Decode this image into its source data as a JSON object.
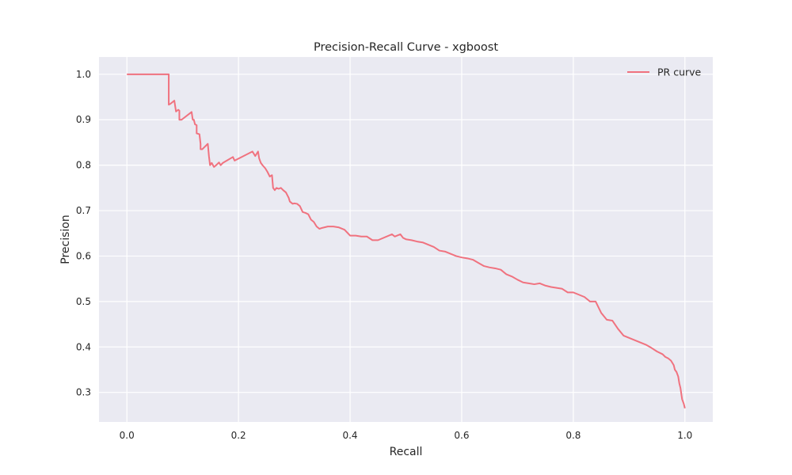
{
  "chart_data": {
    "type": "line",
    "title": "Precision-Recall Curve - xgboost",
    "xlabel": "Recall",
    "ylabel": "Precision",
    "xlim": [
      -0.05,
      1.05
    ],
    "ylim": [
      0.235,
      1.038
    ],
    "xticks": [
      "0.0",
      "0.2",
      "0.4",
      "0.6",
      "0.8",
      "1.0"
    ],
    "yticks": [
      "0.3",
      "0.4",
      "0.5",
      "0.6",
      "0.7",
      "0.8",
      "0.9",
      "1.0"
    ],
    "grid": true,
    "legend_position": "top-right",
    "series": [
      {
        "name": "PR curve",
        "color": "#f0727f",
        "x": [
          0.0,
          0.075,
          0.075,
          0.078,
          0.085,
          0.088,
          0.09,
          0.092,
          0.094,
          0.094,
          0.098,
          0.116,
          0.118,
          0.12,
          0.122,
          0.125,
          0.125,
          0.13,
          0.132,
          0.132,
          0.135,
          0.145,
          0.147,
          0.149,
          0.152,
          0.156,
          0.16,
          0.165,
          0.168,
          0.172,
          0.19,
          0.193,
          0.225,
          0.23,
          0.235,
          0.237,
          0.24,
          0.243,
          0.248,
          0.252,
          0.256,
          0.26,
          0.262,
          0.265,
          0.268,
          0.272,
          0.276,
          0.28,
          0.285,
          0.29,
          0.292,
          0.294,
          0.297,
          0.3,
          0.305,
          0.31,
          0.315,
          0.32,
          0.325,
          0.33,
          0.335,
          0.34,
          0.345,
          0.35,
          0.36,
          0.37,
          0.38,
          0.39,
          0.4,
          0.41,
          0.42,
          0.43,
          0.44,
          0.45,
          0.475,
          0.48,
          0.49,
          0.495,
          0.5,
          0.51,
          0.52,
          0.53,
          0.54,
          0.55,
          0.56,
          0.57,
          0.58,
          0.59,
          0.6,
          0.61,
          0.62,
          0.63,
          0.64,
          0.65,
          0.66,
          0.67,
          0.68,
          0.69,
          0.7,
          0.71,
          0.72,
          0.73,
          0.74,
          0.75,
          0.76,
          0.77,
          0.78,
          0.79,
          0.8,
          0.81,
          0.82,
          0.83,
          0.84,
          0.85,
          0.86,
          0.87,
          0.88,
          0.89,
          0.9,
          0.91,
          0.92,
          0.93,
          0.94,
          0.95,
          0.96,
          0.965,
          0.97,
          0.975,
          0.98,
          0.982,
          0.985,
          0.988,
          0.99,
          0.992,
          0.995,
          0.998,
          1.0
        ],
        "y": [
          1.0,
          1.0,
          0.933,
          0.935,
          0.942,
          0.918,
          0.92,
          0.922,
          0.92,
          0.9,
          0.9,
          0.917,
          0.9,
          0.9,
          0.89,
          0.888,
          0.87,
          0.868,
          0.847,
          0.835,
          0.835,
          0.847,
          0.82,
          0.8,
          0.805,
          0.796,
          0.8,
          0.806,
          0.8,
          0.805,
          0.818,
          0.81,
          0.83,
          0.82,
          0.83,
          0.815,
          0.805,
          0.8,
          0.793,
          0.785,
          0.775,
          0.778,
          0.75,
          0.745,
          0.75,
          0.748,
          0.75,
          0.745,
          0.74,
          0.728,
          0.72,
          0.718,
          0.715,
          0.716,
          0.715,
          0.71,
          0.697,
          0.695,
          0.692,
          0.68,
          0.675,
          0.665,
          0.66,
          0.662,
          0.665,
          0.665,
          0.663,
          0.658,
          0.645,
          0.645,
          0.643,
          0.643,
          0.635,
          0.635,
          0.648,
          0.643,
          0.648,
          0.64,
          0.637,
          0.635,
          0.632,
          0.63,
          0.625,
          0.62,
          0.612,
          0.61,
          0.605,
          0.6,
          0.597,
          0.595,
          0.592,
          0.585,
          0.578,
          0.575,
          0.573,
          0.57,
          0.56,
          0.555,
          0.548,
          0.542,
          0.54,
          0.538,
          0.54,
          0.535,
          0.532,
          0.53,
          0.528,
          0.52,
          0.52,
          0.515,
          0.51,
          0.5,
          0.5,
          0.475,
          0.46,
          0.458,
          0.44,
          0.425,
          0.42,
          0.415,
          0.41,
          0.405,
          0.398,
          0.39,
          0.384,
          0.378,
          0.375,
          0.37,
          0.36,
          0.35,
          0.345,
          0.335,
          0.32,
          0.31,
          0.285,
          0.275,
          0.265
        ]
      }
    ]
  }
}
